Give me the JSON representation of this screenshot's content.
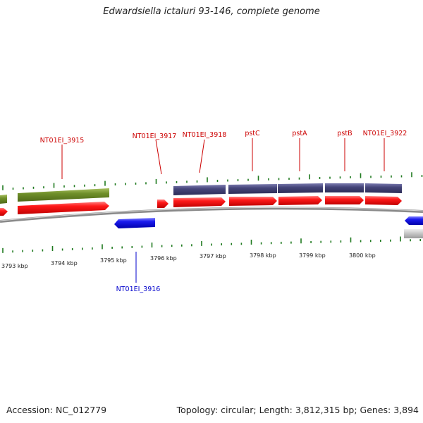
{
  "title": "Edwardsiella ictaluri 93-146, complete genome",
  "accession_text": "Accession: NC_012779",
  "topology_text": "Topology: circular; Length: 3,812,315 bp; Genes: 3,894",
  "colors": {
    "gene_label": "#cc0000",
    "gene_label_reverse": "#0000cc",
    "cds_red": "#ff1a1a",
    "cds_blue": "#1a1aee",
    "olive_feature": "#6f8f2a",
    "purple_feature": "#45457a",
    "grey_feature": "#bdbdbd",
    "tick_green": "#1f7a1f",
    "backbone": "#8a8a8a"
  },
  "scale_labels": [
    "3793 kbp",
    "3794 kbp",
    "3795 kbp",
    "3796 kbp",
    "3797 kbp",
    "3798 kbp",
    "3799 kbp",
    "3800 kbp"
  ],
  "gene_labels": [
    {
      "name": "NT01EI_3915",
      "strand": "forward"
    },
    {
      "name": "NT01EI_3917",
      "strand": "forward"
    },
    {
      "name": "NT01EI_3918",
      "strand": "forward"
    },
    {
      "name": "pstC",
      "strand": "forward"
    },
    {
      "name": "pstA",
      "strand": "forward"
    },
    {
      "name": "pstB",
      "strand": "forward"
    },
    {
      "name": "NT01EI_3922",
      "strand": "forward"
    },
    {
      "name": "NT01EI_3916",
      "strand": "reverse"
    }
  ]
}
